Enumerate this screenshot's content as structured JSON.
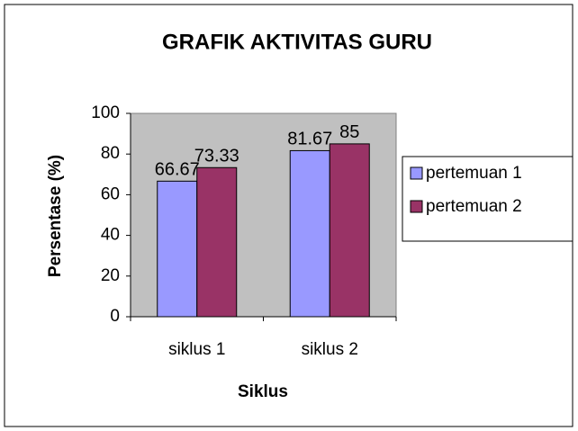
{
  "chart_data": {
    "type": "bar",
    "title": "GRAFIK AKTIVITAS GURU",
    "x_label": "Siklus",
    "y_label": "Persentase (%)",
    "categories": [
      "siklus 1",
      "siklus 2"
    ],
    "series": [
      {
        "name": "pertemuan 1",
        "color": "#9999ff",
        "values": [
          66.67,
          81.67
        ]
      },
      {
        "name": "pertemuan 2",
        "color": "#993366",
        "values": [
          73.33,
          85
        ]
      }
    ],
    "ylim": [
      0,
      100
    ],
    "yticks": [
      0,
      20,
      40,
      60,
      80,
      100
    ],
    "legend": "right",
    "grid": false,
    "plot_background": "#c0c0c0"
  }
}
